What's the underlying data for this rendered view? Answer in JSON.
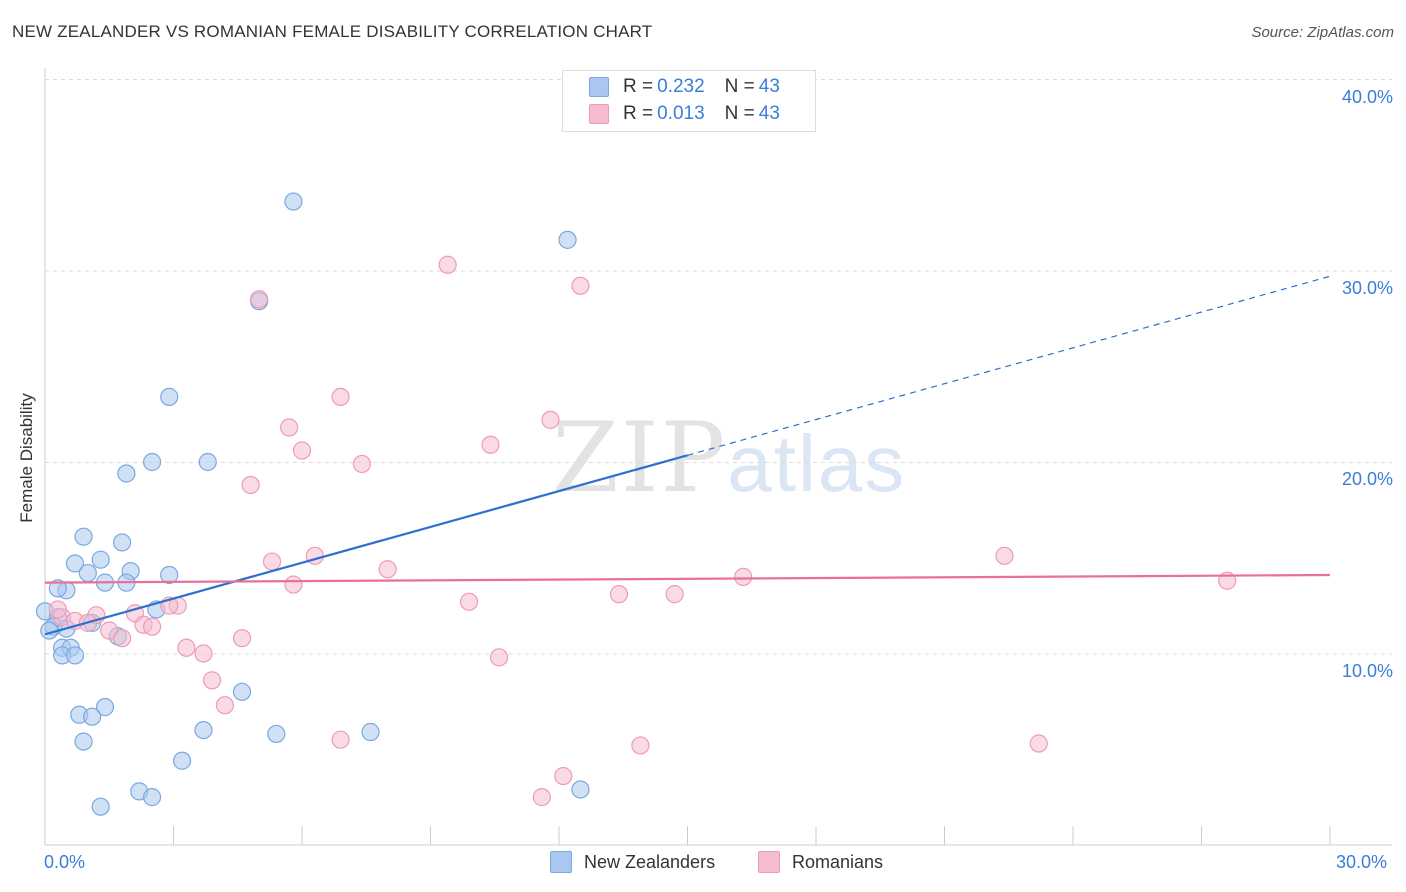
{
  "title": "NEW ZEALANDER VS ROMANIAN FEMALE DISABILITY CORRELATION CHART",
  "source": "Source: ZipAtlas.com",
  "watermark": {
    "main": "ZIP",
    "sub": "atlas"
  },
  "legend_top": [
    {
      "r_label": "R =",
      "r_value": "0.232",
      "n_label": "N =",
      "n_value": "43"
    },
    {
      "r_label": "R =",
      "r_value": "0.013",
      "n_label": "N =",
      "n_value": "43"
    }
  ],
  "legend_bottom": [
    "New Zealanders",
    "Romanians"
  ],
  "x_axis_labels": {
    "min": "0.0%",
    "max": "30.0%"
  },
  "colors": {
    "blue_fill": "#aac8ef",
    "blue_stroke": "#7aa8e0",
    "blue_line": "#2e6fd0",
    "pink_fill": "#f6bdd0",
    "pink_stroke": "#ee9ab8",
    "pink_line": "#e8709a",
    "axis_text": "#3b7dd8",
    "grid": "#dddddd"
  },
  "chart_data": {
    "type": "scatter",
    "title": "NEW ZEALANDER VS ROMANIAN FEMALE DISABILITY CORRELATION CHART",
    "xlabel": "",
    "ylabel": "Female Disability",
    "xlim": [
      0,
      30
    ],
    "ylim": [
      0,
      40
    ],
    "x_ticks": [
      "0.0%",
      "30.0%"
    ],
    "y_ticks": [
      "10.0%",
      "20.0%",
      "30.0%",
      "40.0%"
    ],
    "y_tick_values": [
      10,
      20,
      30,
      40
    ],
    "grid": true,
    "series": [
      {
        "name": "New Zealanders",
        "color": "blue",
        "R": 0.232,
        "N": 43,
        "trend": {
          "x0": 0,
          "y0": 11.0,
          "x1": 30,
          "y1": 29.7,
          "solid_until_x": 15
        },
        "points": [
          [
            5.8,
            33.6
          ],
          [
            12.2,
            31.6
          ],
          [
            5.0,
            28.4
          ],
          [
            2.9,
            23.4
          ],
          [
            1.9,
            19.4
          ],
          [
            2.5,
            20.0
          ],
          [
            3.8,
            20.0
          ],
          [
            0.9,
            16.1
          ],
          [
            1.8,
            15.8
          ],
          [
            0.7,
            14.7
          ],
          [
            1.3,
            14.9
          ],
          [
            1.0,
            14.2
          ],
          [
            2.0,
            14.3
          ],
          [
            2.9,
            14.1
          ],
          [
            1.4,
            13.7
          ],
          [
            1.9,
            13.7
          ],
          [
            0.5,
            13.3
          ],
          [
            0.3,
            13.4
          ],
          [
            0.0,
            12.2
          ],
          [
            2.6,
            12.3
          ],
          [
            0.3,
            11.9
          ],
          [
            0.2,
            11.4
          ],
          [
            0.5,
            11.3
          ],
          [
            0.1,
            11.2
          ],
          [
            1.1,
            11.6
          ],
          [
            1.7,
            10.9
          ],
          [
            0.4,
            10.3
          ],
          [
            0.6,
            10.3
          ],
          [
            0.4,
            9.9
          ],
          [
            0.7,
            9.9
          ],
          [
            4.6,
            8.0
          ],
          [
            1.4,
            7.2
          ],
          [
            0.8,
            6.8
          ],
          [
            1.1,
            6.7
          ],
          [
            3.7,
            6.0
          ],
          [
            5.4,
            5.8
          ],
          [
            7.6,
            5.9
          ],
          [
            0.9,
            5.4
          ],
          [
            3.2,
            4.4
          ],
          [
            12.5,
            2.9
          ],
          [
            2.2,
            2.8
          ],
          [
            2.5,
            2.5
          ],
          [
            1.3,
            2.0
          ]
        ]
      },
      {
        "name": "Romanians",
        "color": "pink",
        "R": 0.013,
        "N": 43,
        "trend": {
          "x0": 0,
          "y0": 13.7,
          "x1": 30,
          "y1": 14.1,
          "solid_until_x": 30
        },
        "points": [
          [
            9.4,
            30.3
          ],
          [
            12.5,
            29.2
          ],
          [
            5.0,
            28.5
          ],
          [
            6.9,
            23.4
          ],
          [
            11.8,
            22.2
          ],
          [
            5.7,
            21.8
          ],
          [
            10.4,
            20.9
          ],
          [
            6.0,
            20.6
          ],
          [
            7.4,
            19.9
          ],
          [
            4.8,
            18.8
          ],
          [
            6.3,
            15.1
          ],
          [
            22.4,
            15.1
          ],
          [
            5.3,
            14.8
          ],
          [
            8.0,
            14.4
          ],
          [
            16.3,
            14.0
          ],
          [
            27.6,
            13.8
          ],
          [
            5.8,
            13.6
          ],
          [
            13.4,
            13.1
          ],
          [
            14.7,
            13.1
          ],
          [
            9.9,
            12.7
          ],
          [
            3.1,
            12.5
          ],
          [
            2.9,
            12.5
          ],
          [
            2.1,
            12.1
          ],
          [
            1.2,
            12.0
          ],
          [
            0.4,
            11.9
          ],
          [
            0.7,
            11.7
          ],
          [
            1.0,
            11.6
          ],
          [
            2.3,
            11.5
          ],
          [
            2.5,
            11.4
          ],
          [
            1.5,
            11.2
          ],
          [
            1.8,
            10.8
          ],
          [
            4.6,
            10.8
          ],
          [
            3.3,
            10.3
          ],
          [
            3.7,
            10.0
          ],
          [
            10.6,
            9.8
          ],
          [
            3.9,
            8.6
          ],
          [
            4.2,
            7.3
          ],
          [
            6.9,
            5.5
          ],
          [
            13.9,
            5.2
          ],
          [
            23.2,
            5.3
          ],
          [
            12.1,
            3.6
          ],
          [
            11.6,
            2.5
          ],
          [
            0.3,
            12.3
          ]
        ]
      }
    ]
  }
}
